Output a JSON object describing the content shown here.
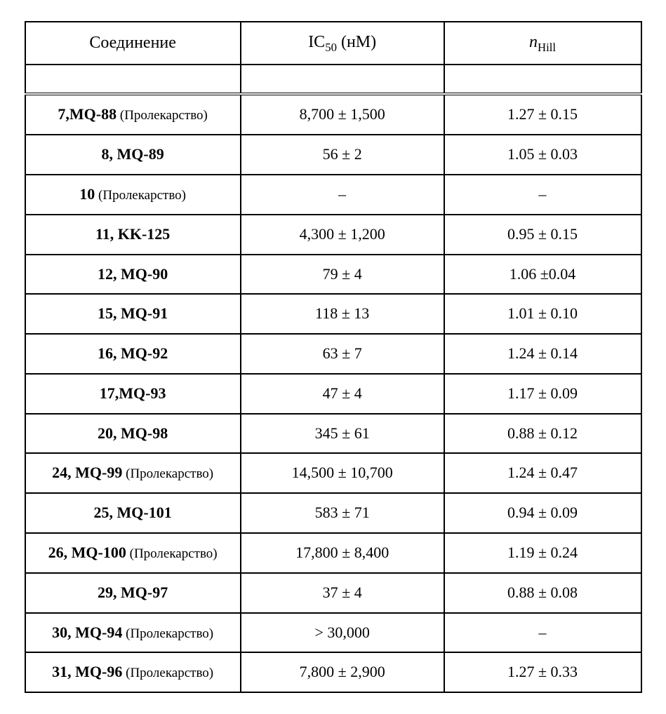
{
  "table": {
    "type": "table",
    "background_color": "#ffffff",
    "border_color": "#000000",
    "border_width": 2,
    "font_family": "Times New Roman",
    "header_fontsize": 24,
    "cell_fontsize": 22,
    "suffix_fontsize": 19,
    "columns": [
      {
        "key": "compound",
        "label_plain": "Соединение",
        "align": "center",
        "width_pct": 35
      },
      {
        "key": "ic50",
        "label_prefix": "IC",
        "label_sub": "50",
        "label_suffix": " (нМ)",
        "align": "center",
        "width_pct": 33
      },
      {
        "key": "nhill",
        "label_italic": "n",
        "label_sub": "Hill",
        "align": "center",
        "width_pct": 32
      }
    ],
    "empty_row": true,
    "rows": [
      {
        "bold": "7,MQ-88",
        "suffix": " (Пролекарство)",
        "ic50": "8,700 ± 1,500",
        "nhill": "1.27 ± 0.15"
      },
      {
        "bold": "8, MQ-89",
        "suffix": "",
        "ic50": "56 ± 2",
        "nhill": "1.05 ± 0.03"
      },
      {
        "bold": "10",
        "suffix": " (Пролекарство)",
        "ic50": "–",
        "nhill": "–"
      },
      {
        "bold": "11, KK-125",
        "suffix": "",
        "ic50": "4,300 ± 1,200",
        "nhill": "0.95 ± 0.15"
      },
      {
        "bold": "12, MQ-90",
        "suffix": "",
        "ic50": "79 ± 4",
        "nhill": "1.06 ±0.04"
      },
      {
        "bold": "15, MQ-91",
        "suffix": "",
        "ic50": "118 ± 13",
        "nhill": "1.01 ± 0.10"
      },
      {
        "bold": "16, MQ-92",
        "suffix": "",
        "ic50": "63 ± 7",
        "nhill": "1.24 ± 0.14"
      },
      {
        "bold": "17,MQ-93",
        "suffix": "",
        "ic50": "47 ± 4",
        "nhill": "1.17 ± 0.09"
      },
      {
        "bold": "20, MQ-98",
        "suffix": "",
        "ic50": "345 ± 61",
        "nhill": "0.88 ± 0.12"
      },
      {
        "bold": "24, MQ-99",
        "suffix": " (Пролекарство)",
        "ic50": "14,500 ± 10,700",
        "nhill": "1.24 ± 0.47"
      },
      {
        "bold": "25, MQ-101",
        "suffix": "",
        "ic50": "583 ± 71",
        "nhill": "0.94 ± 0.09"
      },
      {
        "bold": "26, MQ-100",
        "suffix": " (Пролекарство)",
        "ic50": "17,800 ± 8,400",
        "nhill": "1.19 ± 0.24"
      },
      {
        "bold": "29, MQ-97",
        "suffix": "",
        "ic50": "37 ± 4",
        "nhill": "0.88 ± 0.08"
      },
      {
        "bold": "30, MQ-94",
        "suffix": " (Пролекарство)",
        "ic50": "> 30,000",
        "nhill": "–"
      },
      {
        "bold": "31, MQ-96",
        "suffix": " (Пролекарство)",
        "ic50": "7,800 ± 2,900",
        "nhill": "1.27 ± 0.33"
      }
    ]
  }
}
